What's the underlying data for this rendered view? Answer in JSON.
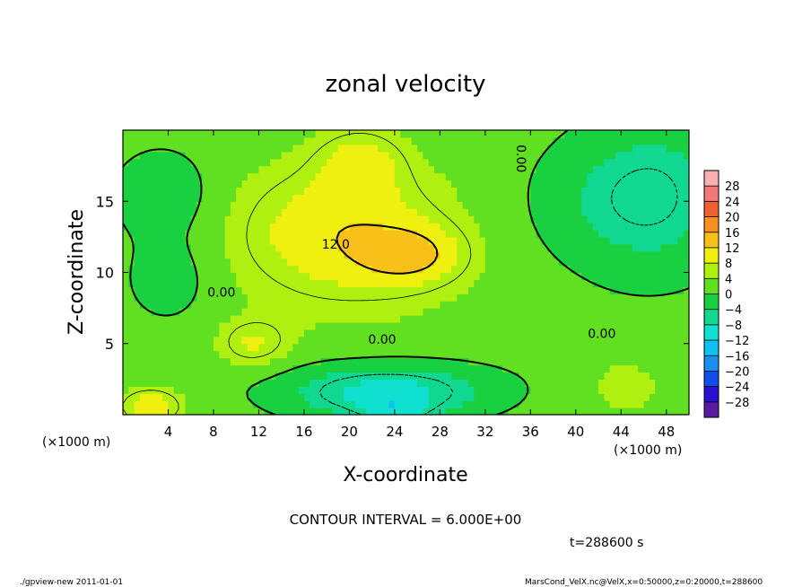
{
  "chart_data": {
    "type": "heatmap",
    "title": "zonal velocity",
    "xlabel": "X-coordinate",
    "ylabel": "Z-coordinate",
    "x_unit": "(×1000 m)",
    "y_unit": "(×1000 m)",
    "xlim": [
      0,
      50
    ],
    "ylim": [
      0,
      20
    ],
    "x_ticks": [
      4,
      8,
      12,
      16,
      20,
      24,
      28,
      32,
      36,
      40,
      44,
      48
    ],
    "y_ticks": [
      5,
      10,
      15
    ],
    "contour_interval_text": "CONTOUR INTERVAL = 6.000E+00",
    "time_text": "t=288600 s",
    "contour_labels": [
      {
        "text": "12.0",
        "x": 18.8,
        "y": 12.0
      },
      {
        "text": "0.00",
        "x": 8.7,
        "y": 8.6
      },
      {
        "text": "0.00",
        "x": 22.9,
        "y": 5.3
      },
      {
        "text": "0.00",
        "x": 35.2,
        "y": 18.0
      },
      {
        "text": "0.00",
        "x": 42.3,
        "y": 5.7
      }
    ],
    "colorbar": {
      "levels": [
        -28,
        -24,
        -20,
        -16,
        -12,
        -8,
        -4,
        0,
        4,
        8,
        12,
        16,
        20,
        24,
        28
      ],
      "colors": [
        "#5a1aa0",
        "#2a10d0",
        "#1050e8",
        "#1890f0",
        "#10c0f0",
        "#10e0d0",
        "#10d890",
        "#18d040",
        "#60e020",
        "#b0f010",
        "#f0f010",
        "#f8c018",
        "#f89020",
        "#f06030",
        "#f07878",
        "#f8b0b0"
      ]
    },
    "field_blobs": [
      {
        "x": 25.5,
        "y": 11.2,
        "sx": 3.2,
        "sy": 1.4,
        "v": 8
      },
      {
        "x": 21.0,
        "y": 17.8,
        "sx": 2.6,
        "sy": 1.6,
        "v": 6
      },
      {
        "x": 19.0,
        "y": 13.0,
        "sx": 6.0,
        "sy": 3.0,
        "v": 6
      },
      {
        "x": 2.5,
        "y": 0.6,
        "sx": 2.0,
        "sy": 0.9,
        "v": 9
      },
      {
        "x": 23.0,
        "y": 1.5,
        "sx": 6.0,
        "sy": 1.4,
        "v": -10
      },
      {
        "x": 24.0,
        "y": 0.2,
        "sx": 2.0,
        "sy": 0.6,
        "v": -6
      },
      {
        "x": 3.5,
        "y": 15.5,
        "sx": 3.0,
        "sy": 2.2,
        "v": -6
      },
      {
        "x": 4.0,
        "y": 9.5,
        "sx": 2.5,
        "sy": 2.0,
        "v": -5
      },
      {
        "x": 47.0,
        "y": 16.0,
        "sx": 5.0,
        "sy": 4.0,
        "v": -6
      },
      {
        "x": 39.0,
        "y": 15.0,
        "sx": 4.0,
        "sy": 3.0,
        "v": -2
      },
      {
        "x": 11.5,
        "y": 5.0,
        "sx": 2.2,
        "sy": 1.2,
        "v": 6
      },
      {
        "x": 44.0,
        "y": 2.0,
        "sx": 4.0,
        "sy": 2.0,
        "v": 3
      }
    ],
    "field_background": 2,
    "footer_left": "./gpview-new  2011-01-01",
    "footer_right": "MarsCond_VelX.nc@VelX,x=0:50000,z=0:20000,t=288600"
  }
}
